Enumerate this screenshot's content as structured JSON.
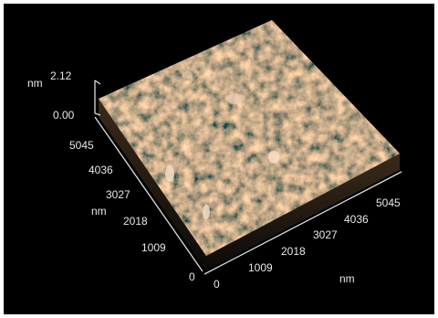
{
  "z_axis": {
    "unit": "nm",
    "max": "2.12",
    "min": "0.00"
  },
  "y_axis": {
    "unit": "nm",
    "ticks": [
      "0",
      "1009",
      "2018",
      "3027",
      "4036",
      "5045"
    ]
  },
  "x_axis": {
    "unit": "nm",
    "ticks": [
      "0",
      "1009",
      "2018",
      "3027",
      "4036",
      "5045"
    ]
  }
}
